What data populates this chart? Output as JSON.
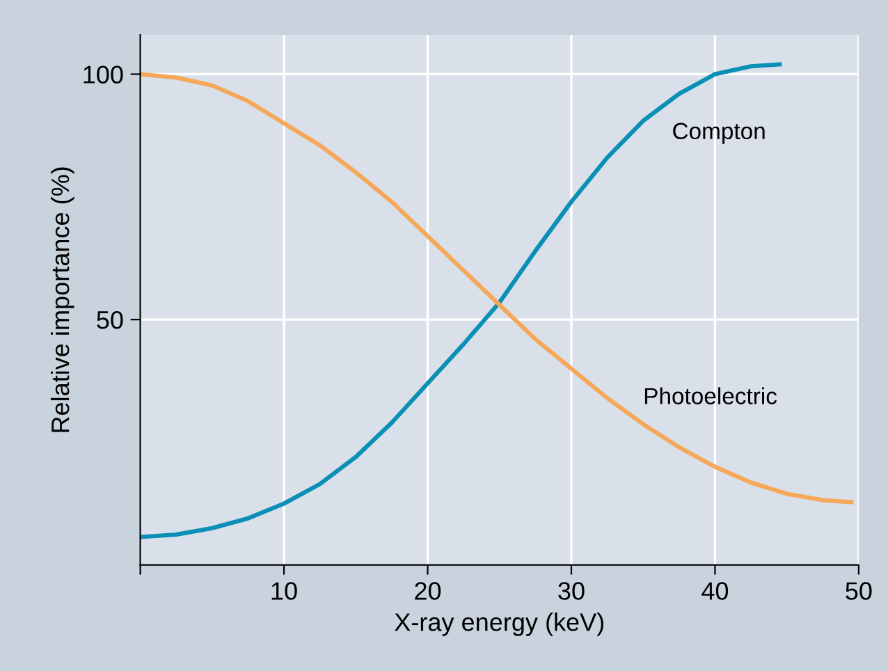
{
  "chart_data": {
    "type": "line",
    "xlabel": "X-ray energy (keV)",
    "ylabel": "Relative importance (%)",
    "xlim": [
      0,
      50
    ],
    "xticks": [
      {
        "value": 0,
        "label": null
      },
      10,
      20,
      30,
      40,
      50
    ],
    "ylim": [
      0,
      108
    ],
    "yticks": [
      50,
      100
    ],
    "grid": true,
    "legend": false,
    "marker": "none",
    "line_style": "solid",
    "series": [
      {
        "name": "Compton",
        "color": "#0a8fb5",
        "x": [
          0,
          2.5,
          5,
          7.5,
          10,
          12.5,
          15,
          17.5,
          20,
          22.5,
          25,
          27.5,
          30,
          32.5,
          35,
          37.5,
          40,
          42.5,
          44.5
        ],
        "values": [
          5.7,
          6.2,
          7.5,
          9.5,
          12.5,
          16.5,
          22,
          29,
          37,
          45,
          53.5,
          64,
          74,
          83,
          90.5,
          96,
          100,
          101.6,
          102
        ]
      },
      {
        "name": "Photoelectric",
        "color": "#f5a85a",
        "x": [
          0,
          2.5,
          5,
          7.5,
          10,
          12.5,
          15,
          17.5,
          20,
          22.5,
          25,
          27.5,
          30,
          32.5,
          35,
          37.5,
          40,
          42.5,
          45,
          47.5,
          49.5
        ],
        "values": [
          100,
          99.3,
          97.7,
          94.5,
          90,
          85.5,
          80,
          74,
          67,
          60,
          53,
          46,
          40,
          34,
          28.7,
          24,
          20,
          16.8,
          14.5,
          13.2,
          12.8
        ]
      }
    ]
  }
}
